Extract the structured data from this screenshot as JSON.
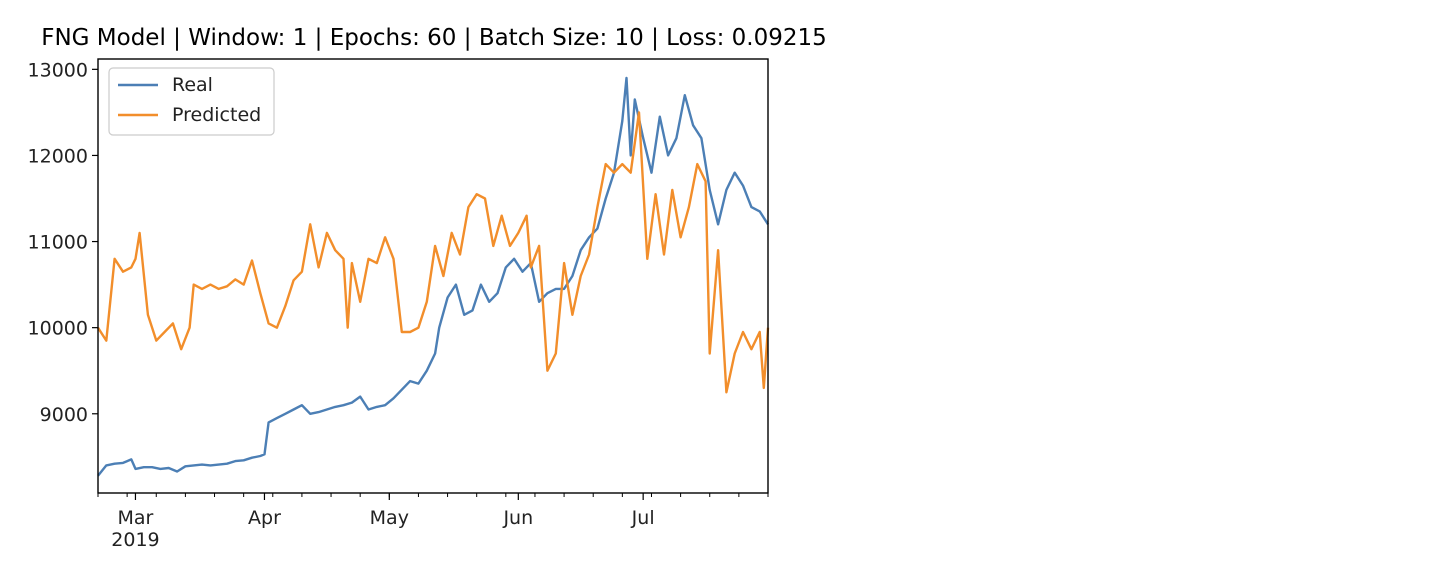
{
  "chart_data": {
    "type": "line",
    "title": "FNG Model | Window: 1 | Epochs: 60 | Batch Size: 10 | Loss: 0.09215",
    "xlabel": "",
    "ylabel": "",
    "x_start": "2019-02-20",
    "x_end": "2019-07-31",
    "ylim": [
      8080,
      13120
    ],
    "yticks": [
      9000,
      10000,
      11000,
      12000,
      13000
    ],
    "xticks": [
      {
        "date": "2019-03-01",
        "label": "Mar",
        "sublabel": "2019"
      },
      {
        "date": "2019-04-01",
        "label": "Apr",
        "sublabel": ""
      },
      {
        "date": "2019-05-01",
        "label": "May",
        "sublabel": ""
      },
      {
        "date": "2019-06-01",
        "label": "Jun",
        "sublabel": ""
      },
      {
        "date": "2019-07-01",
        "label": "Jul",
        "sublabel": ""
      }
    ],
    "grid": false,
    "legend_position": "top-left",
    "series": [
      {
        "name": "Real",
        "color": "#4c7fb5",
        "points": [
          [
            "2019-02-20",
            8280
          ],
          [
            "2019-02-22",
            8400
          ],
          [
            "2019-02-24",
            8420
          ],
          [
            "2019-02-26",
            8430
          ],
          [
            "2019-02-28",
            8470
          ],
          [
            "2019-03-01",
            8360
          ],
          [
            "2019-03-03",
            8380
          ],
          [
            "2019-03-05",
            8380
          ],
          [
            "2019-03-07",
            8360
          ],
          [
            "2019-03-09",
            8370
          ],
          [
            "2019-03-11",
            8330
          ],
          [
            "2019-03-13",
            8390
          ],
          [
            "2019-03-15",
            8400
          ],
          [
            "2019-03-17",
            8410
          ],
          [
            "2019-03-19",
            8400
          ],
          [
            "2019-03-21",
            8410
          ],
          [
            "2019-03-23",
            8420
          ],
          [
            "2019-03-25",
            8450
          ],
          [
            "2019-03-27",
            8460
          ],
          [
            "2019-03-29",
            8490
          ],
          [
            "2019-03-31",
            8510
          ],
          [
            "2019-04-01",
            8530
          ],
          [
            "2019-04-02",
            8900
          ],
          [
            "2019-04-04",
            8950
          ],
          [
            "2019-04-06",
            9000
          ],
          [
            "2019-04-08",
            9050
          ],
          [
            "2019-04-10",
            9100
          ],
          [
            "2019-04-12",
            9000
          ],
          [
            "2019-04-14",
            9020
          ],
          [
            "2019-04-16",
            9050
          ],
          [
            "2019-04-18",
            9080
          ],
          [
            "2019-04-20",
            9100
          ],
          [
            "2019-04-22",
            9130
          ],
          [
            "2019-04-24",
            9200
          ],
          [
            "2019-04-26",
            9050
          ],
          [
            "2019-04-28",
            9080
          ],
          [
            "2019-04-30",
            9100
          ],
          [
            "2019-05-02",
            9180
          ],
          [
            "2019-05-04",
            9280
          ],
          [
            "2019-05-06",
            9380
          ],
          [
            "2019-05-08",
            9350
          ],
          [
            "2019-05-10",
            9500
          ],
          [
            "2019-05-12",
            9700
          ],
          [
            "2019-05-13",
            10000
          ],
          [
            "2019-05-15",
            10350
          ],
          [
            "2019-05-17",
            10500
          ],
          [
            "2019-05-19",
            10150
          ],
          [
            "2019-05-21",
            10200
          ],
          [
            "2019-05-23",
            10500
          ],
          [
            "2019-05-25",
            10300
          ],
          [
            "2019-05-27",
            10400
          ],
          [
            "2019-05-29",
            10700
          ],
          [
            "2019-05-31",
            10800
          ],
          [
            "2019-06-02",
            10650
          ],
          [
            "2019-06-04",
            10750
          ],
          [
            "2019-06-06",
            10300
          ],
          [
            "2019-06-08",
            10400
          ],
          [
            "2019-06-10",
            10450
          ],
          [
            "2019-06-12",
            10450
          ],
          [
            "2019-06-14",
            10600
          ],
          [
            "2019-06-16",
            10900
          ],
          [
            "2019-06-18",
            11050
          ],
          [
            "2019-06-20",
            11150
          ],
          [
            "2019-06-22",
            11500
          ],
          [
            "2019-06-24",
            11800
          ],
          [
            "2019-06-26",
            12400
          ],
          [
            "2019-06-27",
            12900
          ],
          [
            "2019-06-28",
            12000
          ],
          [
            "2019-06-29",
            12650
          ],
          [
            "2019-07-01",
            12200
          ],
          [
            "2019-07-03",
            11800
          ],
          [
            "2019-07-05",
            12450
          ],
          [
            "2019-07-07",
            12000
          ],
          [
            "2019-07-09",
            12200
          ],
          [
            "2019-07-11",
            12700
          ],
          [
            "2019-07-13",
            12350
          ],
          [
            "2019-07-15",
            12200
          ],
          [
            "2019-07-17",
            11600
          ],
          [
            "2019-07-19",
            11200
          ],
          [
            "2019-07-21",
            11600
          ],
          [
            "2019-07-23",
            11800
          ],
          [
            "2019-07-25",
            11650
          ],
          [
            "2019-07-27",
            11400
          ],
          [
            "2019-07-29",
            11350
          ],
          [
            "2019-07-31",
            11200
          ]
        ]
      },
      {
        "name": "Predicted",
        "color": "#f28e2b",
        "points": [
          [
            "2019-02-20",
            10000
          ],
          [
            "2019-02-22",
            9850
          ],
          [
            "2019-02-24",
            10800
          ],
          [
            "2019-02-26",
            10650
          ],
          [
            "2019-02-28",
            10700
          ],
          [
            "2019-03-01",
            10800
          ],
          [
            "2019-03-02",
            11100
          ],
          [
            "2019-03-04",
            10150
          ],
          [
            "2019-03-06",
            9850
          ],
          [
            "2019-03-08",
            9950
          ],
          [
            "2019-03-10",
            10050
          ],
          [
            "2019-03-12",
            9750
          ],
          [
            "2019-03-14",
            10000
          ],
          [
            "2019-03-15",
            10500
          ],
          [
            "2019-03-17",
            10450
          ],
          [
            "2019-03-19",
            10500
          ],
          [
            "2019-03-21",
            10450
          ],
          [
            "2019-03-23",
            10480
          ],
          [
            "2019-03-25",
            10560
          ],
          [
            "2019-03-27",
            10500
          ],
          [
            "2019-03-29",
            10780
          ],
          [
            "2019-03-31",
            10400
          ],
          [
            "2019-04-02",
            10050
          ],
          [
            "2019-04-04",
            10000
          ],
          [
            "2019-04-06",
            10250
          ],
          [
            "2019-04-08",
            10550
          ],
          [
            "2019-04-10",
            10650
          ],
          [
            "2019-04-12",
            11200
          ],
          [
            "2019-04-14",
            10700
          ],
          [
            "2019-04-16",
            11100
          ],
          [
            "2019-04-18",
            10900
          ],
          [
            "2019-04-20",
            10800
          ],
          [
            "2019-04-21",
            10000
          ],
          [
            "2019-04-22",
            10750
          ],
          [
            "2019-04-24",
            10300
          ],
          [
            "2019-04-26",
            10800
          ],
          [
            "2019-04-28",
            10750
          ],
          [
            "2019-04-30",
            11050
          ],
          [
            "2019-05-02",
            10800
          ],
          [
            "2019-05-04",
            9950
          ],
          [
            "2019-05-06",
            9950
          ],
          [
            "2019-05-08",
            10000
          ],
          [
            "2019-05-10",
            10300
          ],
          [
            "2019-05-12",
            10950
          ],
          [
            "2019-05-14",
            10600
          ],
          [
            "2019-05-16",
            11100
          ],
          [
            "2019-05-18",
            10850
          ],
          [
            "2019-05-20",
            11400
          ],
          [
            "2019-05-22",
            11550
          ],
          [
            "2019-05-24",
            11500
          ],
          [
            "2019-05-26",
            10950
          ],
          [
            "2019-05-28",
            11300
          ],
          [
            "2019-05-30",
            10950
          ],
          [
            "2019-06-01",
            11100
          ],
          [
            "2019-06-03",
            11300
          ],
          [
            "2019-06-04",
            10700
          ],
          [
            "2019-06-06",
            10950
          ],
          [
            "2019-06-08",
            9500
          ],
          [
            "2019-06-10",
            9700
          ],
          [
            "2019-06-12",
            10750
          ],
          [
            "2019-06-14",
            10150
          ],
          [
            "2019-06-16",
            10600
          ],
          [
            "2019-06-18",
            10850
          ],
          [
            "2019-06-20",
            11400
          ],
          [
            "2019-06-22",
            11900
          ],
          [
            "2019-06-24",
            11800
          ],
          [
            "2019-06-26",
            11900
          ],
          [
            "2019-06-28",
            11800
          ],
          [
            "2019-06-30",
            12500
          ],
          [
            "2019-07-02",
            10800
          ],
          [
            "2019-07-04",
            11550
          ],
          [
            "2019-07-06",
            10850
          ],
          [
            "2019-07-08",
            11600
          ],
          [
            "2019-07-10",
            11050
          ],
          [
            "2019-07-12",
            11400
          ],
          [
            "2019-07-14",
            11900
          ],
          [
            "2019-07-16",
            11700
          ],
          [
            "2019-07-17",
            9700
          ],
          [
            "2019-07-19",
            10900
          ],
          [
            "2019-07-21",
            9250
          ],
          [
            "2019-07-23",
            9700
          ],
          [
            "2019-07-25",
            9950
          ],
          [
            "2019-07-27",
            9750
          ],
          [
            "2019-07-29",
            9950
          ],
          [
            "2019-07-30",
            9300
          ],
          [
            "2019-07-31",
            10000
          ]
        ]
      }
    ]
  }
}
